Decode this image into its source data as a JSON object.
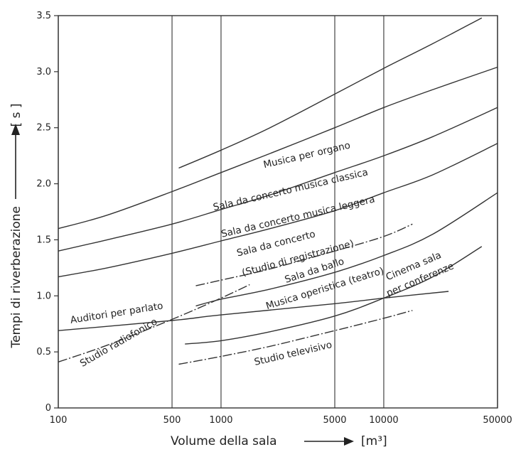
{
  "chart_data": {
    "type": "line",
    "xlabel": "Volume della sala",
    "xunit": "[m³]",
    "ylabel": "Tempi di riverberazione",
    "yunit": "[ s ]",
    "x_scale": "log",
    "xlim": [
      100,
      50000
    ],
    "ylim": [
      0,
      3.5
    ],
    "grid": "vertical gridlines at x tick positions",
    "x_ticks": [
      100,
      500,
      1000,
      5000,
      10000,
      50000
    ],
    "x_tick_labels": [
      "100",
      "500",
      "1000",
      "5000",
      "10000",
      "50000"
    ],
    "y_ticks": [
      0,
      0.5,
      1.0,
      1.5,
      2.0,
      2.5,
      3.0,
      3.5
    ],
    "y_tick_labels": [
      "0",
      "0.5",
      "1.0",
      "1.5",
      "2.0",
      "2.5",
      "3.0",
      "3.5"
    ],
    "series": [
      {
        "name": "Musica per organo",
        "style": "solid",
        "x": [
          550,
          1000,
          2000,
          5000,
          10000,
          20000,
          40000
        ],
        "y": [
          2.14,
          2.3,
          2.5,
          2.8,
          3.03,
          3.25,
          3.48
        ]
      },
      {
        "name": "Sala da concerto musica classica",
        "style": "solid",
        "x": [
          100,
          200,
          500,
          1000,
          2000,
          5000,
          10000,
          20000,
          50000
        ],
        "y": [
          1.6,
          1.72,
          1.93,
          2.1,
          2.27,
          2.5,
          2.68,
          2.84,
          3.04
        ]
      },
      {
        "name": "Sala da concerto musica leggera",
        "style": "solid",
        "x": [
          100,
          200,
          500,
          1000,
          2000,
          5000,
          10000,
          20000,
          50000
        ],
        "y": [
          1.4,
          1.5,
          1.64,
          1.77,
          1.9,
          2.1,
          2.25,
          2.42,
          2.68
        ]
      },
      {
        "name": "Sala da concerto (Studio di registrazione)",
        "style": "solid",
        "x": [
          100,
          200,
          500,
          1000,
          2000,
          5000,
          10000,
          20000,
          50000
        ],
        "y": [
          1.17,
          1.25,
          1.38,
          1.49,
          1.6,
          1.76,
          1.92,
          2.08,
          2.36
        ]
      },
      {
        "name": "Sala da ballo",
        "style": "dash-dot",
        "x": [
          700,
          1000,
          2000,
          5000,
          10000,
          15000
        ],
        "y": [
          1.09,
          1.14,
          1.24,
          1.4,
          1.53,
          1.64
        ]
      },
      {
        "name": "Musica operistica (teatro)",
        "style": "solid",
        "x": [
          700,
          1000,
          2000,
          5000,
          10000,
          20000,
          50000
        ],
        "y": [
          0.91,
          0.97,
          1.06,
          1.21,
          1.36,
          1.55,
          1.92
        ]
      },
      {
        "name": "Auditori per parlato",
        "style": "solid",
        "x": [
          100,
          500,
          1000,
          5000,
          10000,
          25000
        ],
        "y": [
          0.69,
          0.78,
          0.83,
          0.93,
          0.98,
          1.04
        ]
      },
      {
        "name": "Studio radiofonico",
        "style": "dash-dot",
        "x": [
          100,
          200,
          500,
          1000,
          1500
        ],
        "y": [
          0.41,
          0.56,
          0.79,
          0.98,
          1.1
        ]
      },
      {
        "name": "Cinema sala per conferenze",
        "style": "solid",
        "x": [
          600,
          1000,
          2000,
          5000,
          10000,
          20000,
          40000
        ],
        "y": [
          0.57,
          0.6,
          0.68,
          0.82,
          0.98,
          1.17,
          1.44
        ]
      },
      {
        "name": "Studio televisivo",
        "style": "dash-dot",
        "x": [
          550,
          1000,
          2000,
          5000,
          10000,
          15000
        ],
        "y": [
          0.39,
          0.46,
          0.55,
          0.69,
          0.8,
          0.87
        ]
      }
    ],
    "curve_labels": [
      {
        "text": "Musica per organo"
      },
      {
        "text": "Sala da concerto musica classica"
      },
      {
        "text": "Sala da concerto musica leggera"
      },
      {
        "text": "Sala da concerto"
      },
      {
        "text": "(Studio di registrazione)"
      },
      {
        "text": "Sala da ballo"
      },
      {
        "text": "Musica operistica (teatro)"
      },
      {
        "text": "Auditori per parlato"
      },
      {
        "text": "Studio radiofonico"
      },
      {
        "text": "Cinema sala"
      },
      {
        "text": "per conferenze"
      },
      {
        "text": "Studio televisivo"
      }
    ]
  }
}
